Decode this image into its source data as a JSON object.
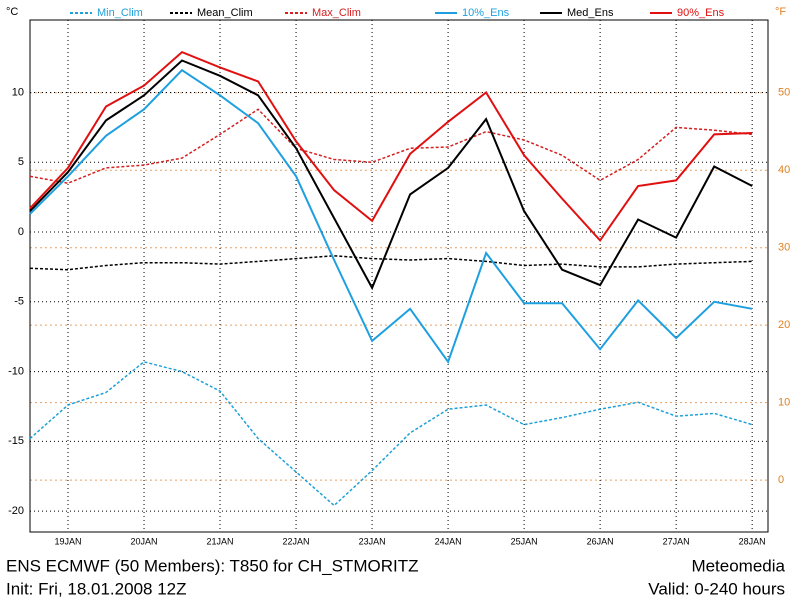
{
  "chart_data": {
    "type": "line",
    "y_unit": "°C",
    "y2_unit": "°F",
    "title": "ENS ECMWF (50 Members): T850 for CH_STMORITZ",
    "subtitle": "Init: Fri, 18.01.2008 12Z",
    "source": "Meteomedia",
    "valid": "Valid: 0-240 hours",
    "x": [
      0,
      12,
      24,
      36,
      48,
      60,
      72,
      84,
      96,
      108,
      120,
      132,
      144,
      156,
      168,
      180,
      192,
      204,
      216,
      228
    ],
    "xlim": [
      0,
      233
    ],
    "xticks": [
      {
        "value": 12,
        "label": "19JAN"
      },
      {
        "value": 36,
        "label": "20JAN"
      },
      {
        "value": 60,
        "label": "21JAN"
      },
      {
        "value": 84,
        "label": "22JAN"
      },
      {
        "value": 108,
        "label": "23JAN"
      },
      {
        "value": 132,
        "label": "24JAN"
      },
      {
        "value": 156,
        "label": "25JAN"
      },
      {
        "value": 180,
        "label": "26JAN"
      },
      {
        "value": 204,
        "label": "27JAN"
      },
      {
        "value": 228,
        "label": "28JAN"
      }
    ],
    "ylim": [
      -21.5,
      15.2
    ],
    "yticks": [
      10,
      5,
      0,
      -5,
      -10,
      -15,
      -20
    ],
    "y2lim": [
      -6.7,
      59.4
    ],
    "y2ticks": [
      50,
      40,
      30,
      20,
      10,
      0
    ],
    "grid": true,
    "series": [
      {
        "name": "Min_Clim",
        "color": "#1ea0d8",
        "dashed": true,
        "values": [
          -14.8,
          -12.4,
          -11.5,
          -9.3,
          -10,
          -11.4,
          -14.8,
          -17.2,
          -19.6,
          -17.1,
          -14.4,
          -12.7,
          -12.4,
          -13.8,
          -13.3,
          -12.7,
          -12.2,
          -13.2,
          -13,
          -13.8
        ]
      },
      {
        "name": "Mean_Clim",
        "color": "#000000",
        "dashed": true,
        "values": [
          -2.6,
          -2.7,
          -2.4,
          -2.2,
          -2.2,
          -2.3,
          -2.1,
          -1.9,
          -1.7,
          -1.9,
          -2,
          -1.9,
          -2.1,
          -2.4,
          -2.3,
          -2.5,
          -2.5,
          -2.3,
          -2.2,
          -2.1
        ]
      },
      {
        "name": "Max_Clim",
        "color": "#d42020",
        "dashed": true,
        "values": [
          4,
          3.5,
          4.6,
          4.8,
          5.3,
          7,
          8.8,
          6,
          5.2,
          5,
          6,
          6.1,
          7.2,
          6.6,
          5.5,
          3.7,
          5.2,
          7.5,
          7.3,
          7
        ]
      },
      {
        "name": "10%_Ens",
        "color": "#1ea0e0",
        "dashed": false,
        "values": [
          1.3,
          4,
          6.9,
          8.8,
          11.6,
          9.8,
          7.8,
          4,
          -2,
          -7.8,
          -5.5,
          -9.3,
          -1.5,
          -5.1,
          -5.1,
          -8.4,
          -4.9,
          -7.6,
          -5,
          -5.5
        ]
      },
      {
        "name": "Med_Ens",
        "color": "#000000",
        "dashed": false,
        "values": [
          1.5,
          4.3,
          8,
          9.8,
          12.3,
          11.2,
          9.8,
          6,
          1,
          -4,
          2.7,
          4.6,
          8.1,
          1.5,
          -2.7,
          -3.8,
          0.9,
          -0.4,
          4.7,
          3.3
        ]
      },
      {
        "name": "90%_Ens",
        "color": "#e01010",
        "dashed": false,
        "values": [
          1.7,
          4.6,
          9,
          10.5,
          12.9,
          11.8,
          10.8,
          6.5,
          3,
          0.8,
          5.6,
          7.9,
          10,
          5.5,
          2.4,
          -0.6,
          3.3,
          3.7,
          7,
          7.1
        ]
      }
    ]
  }
}
